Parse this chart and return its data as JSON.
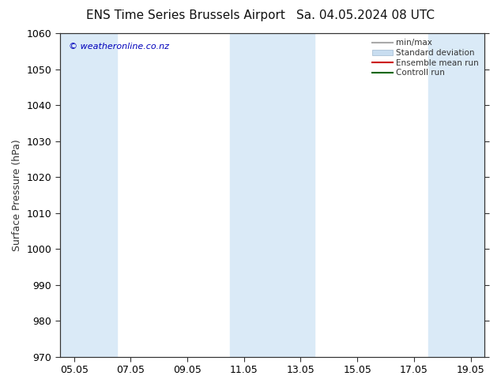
{
  "title_left": "ENS Time Series Brussels Airport",
  "title_right": "Sa. 04.05.2024 08 UTC",
  "ylabel": "Surface Pressure (hPa)",
  "watermark": "© weatheronline.co.nz",
  "ylim": [
    970,
    1060
  ],
  "yticks": [
    970,
    980,
    990,
    1000,
    1010,
    1020,
    1030,
    1040,
    1050,
    1060
  ],
  "xtick_labels": [
    "05.05",
    "07.05",
    "09.05",
    "11.05",
    "13.05",
    "15.05",
    "17.05",
    "19.05"
  ],
  "xtick_positions": [
    0,
    2,
    4,
    6,
    8,
    10,
    12,
    14
  ],
  "shade_bands": [
    {
      "x_start": -0.5,
      "x_end": 1.5,
      "color": "#daeaf7"
    },
    {
      "x_start": 5.5,
      "x_end": 8.5,
      "color": "#daeaf7"
    },
    {
      "x_start": 12.5,
      "x_end": 14.5,
      "color": "#daeaf7"
    }
  ],
  "legend_items": [
    {
      "label": "min/max",
      "color": "#aaaaaa",
      "type": "line"
    },
    {
      "label": "Standard deviation",
      "color": "#c8ddf0",
      "type": "patch"
    },
    {
      "label": "Ensemble mean run",
      "color": "#cc0000",
      "type": "line"
    },
    {
      "label": "Controll run",
      "color": "#006600",
      "type": "line"
    }
  ],
  "background_color": "#ffffff",
  "title_fontsize": 11,
  "tick_fontsize": 9,
  "ylabel_fontsize": 9,
  "watermark_color": "#0000bb",
  "watermark_fontsize": 8,
  "x_total_min": -0.5,
  "x_total_max": 14.5
}
